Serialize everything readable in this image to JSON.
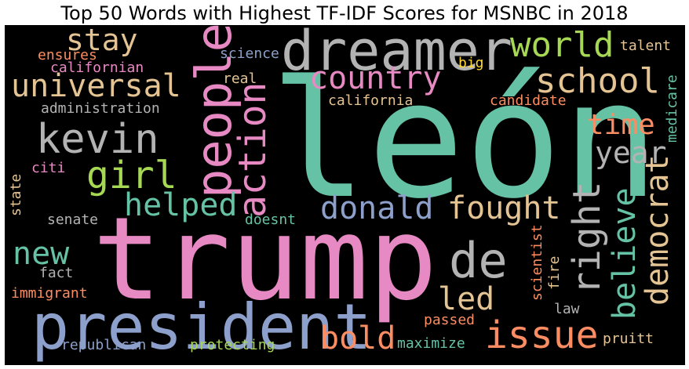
{
  "title": "Top 50 Words with Highest TF-IDF Scores for MSNBC in 2018",
  "colors": {
    "teal": "#66c2a5",
    "orange": "#fc8d62",
    "blue": "#8da0cb",
    "pink": "#e78ac3",
    "green": "#a6d854",
    "yellow": "#ffd92f",
    "tan": "#e5c494",
    "gray": "#b3b3b3",
    "background": "#000000"
  },
  "words": {
    "leon": "león",
    "trump": "trump",
    "president": "president",
    "dreamer": "dreamer",
    "people": "people",
    "de": "de",
    "kevin": "kevin",
    "universal": "universal",
    "school": "school",
    "action": "action",
    "country": "country",
    "stay": "stay",
    "world": "world",
    "girl": "girl",
    "helped": "helped",
    "donald": "donald",
    "fought": "fought",
    "right": "right",
    "believe": "believe",
    "democrat": "democrat",
    "issue": "issue",
    "bold": "bold",
    "led": "led",
    "new": "new",
    "time": "time",
    "year": "year",
    "ensures": "ensures",
    "californian": "californian",
    "science": "science",
    "big": "big",
    "talent": "talent",
    "medicare": "medicare",
    "real": "real",
    "administration": "administration",
    "california": "california",
    "candidate": "candidate",
    "citi": "citi",
    "state": "state",
    "senate": "senate",
    "doesnt": "doesnt",
    "fact": "fact",
    "immigrant": "immigrant",
    "scientist": "scientist",
    "fire": "fire",
    "law": "law",
    "passed": "passed",
    "republican": "republican",
    "protecting": "protecting",
    "maximize": "maximize",
    "pruitt": "pruitt"
  }
}
